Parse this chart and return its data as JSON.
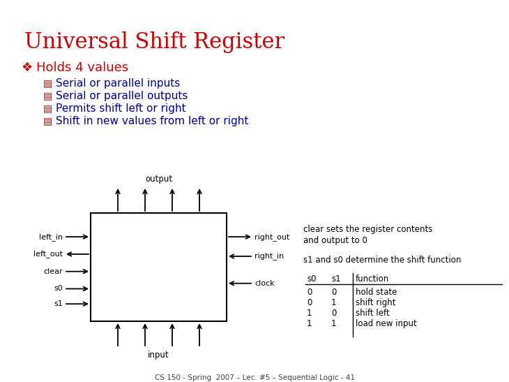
{
  "title": "Universal Shift Register",
  "title_color": "#cc0000",
  "title_fontsize": 22,
  "main_bullet": "Holds 4 values",
  "sub_bullets": [
    "Serial or parallel inputs",
    "Serial or parallel outputs",
    "Permits shift left or right",
    "Shift in new values from left or right"
  ],
  "main_bullet_color": "#cc0000",
  "sub_bullet_color": "#000099",
  "clear_text1": "clear sets the register contents",
  "clear_text2": "and output to 0",
  "s1s0_text": "s1 and s0 determine the shift function",
  "table_headers": [
    "s0",
    "s1",
    "function"
  ],
  "table_rows": [
    [
      "0",
      "0",
      "hold state"
    ],
    [
      "0",
      "1",
      "shift right"
    ],
    [
      "1",
      "0",
      "shift left"
    ],
    [
      "1",
      "1",
      "load new input"
    ]
  ],
  "footer": "CS 150 - Spring  2007 – Lec. #5 – Sequential Logic - 41",
  "bg_color": "#ffffff"
}
